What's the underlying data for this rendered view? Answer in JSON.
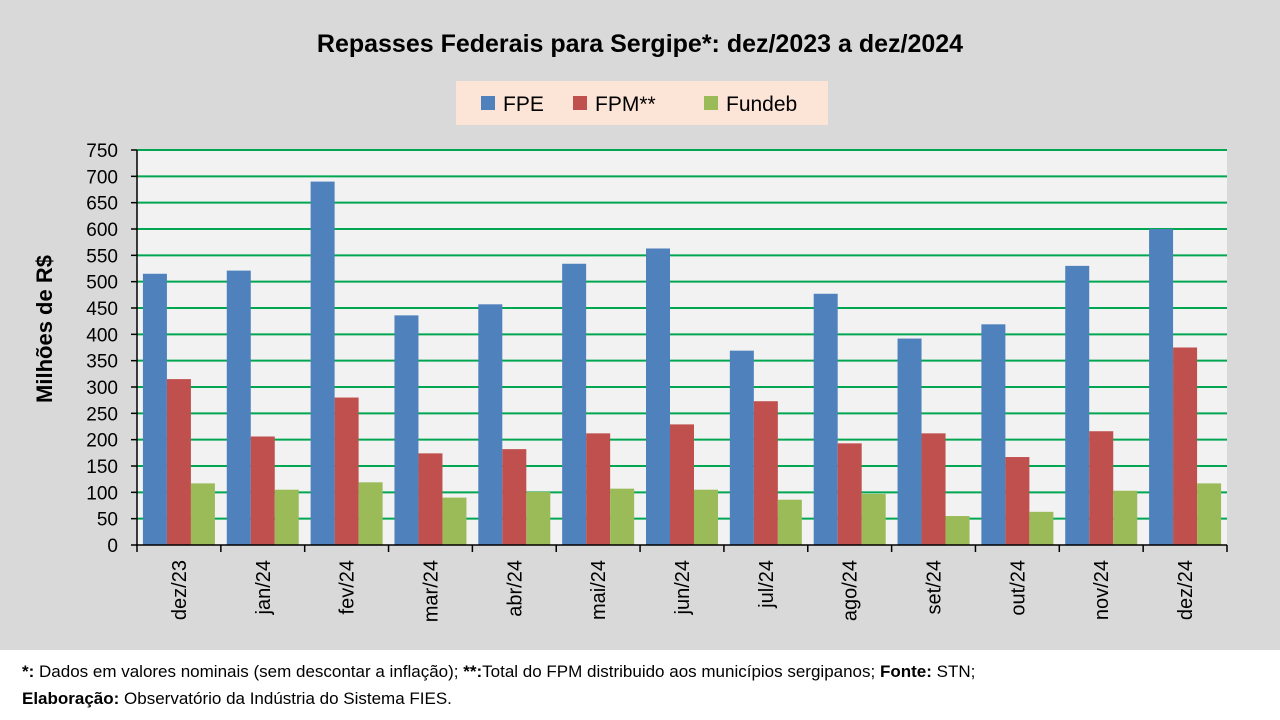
{
  "chart_data": {
    "type": "bar",
    "title": "Repasses Federais para Sergipe*: dez/2023 a dez/2024",
    "ylabel": "Milhões de R$",
    "xlabel": "",
    "ylim": [
      0,
      750
    ],
    "yticks": [
      0,
      50,
      100,
      150,
      200,
      250,
      300,
      350,
      400,
      450,
      500,
      550,
      600,
      650,
      700,
      750
    ],
    "grid": true,
    "legend_position": "top",
    "categories": [
      "dez/23",
      "jan/24",
      "fev/24",
      "mar/24",
      "abr/24",
      "mai/24",
      "jun/24",
      "jul/24",
      "ago/24",
      "set/24",
      "out/24",
      "nov/24",
      "dez/24"
    ],
    "series": [
      {
        "name": "FPE",
        "color": "#4f81bd",
        "values": [
          515,
          521,
          690,
          436,
          457,
          534,
          563,
          369,
          477,
          392,
          419,
          530,
          600
        ]
      },
      {
        "name": "FPM**",
        "color": "#c0504d",
        "values": [
          315,
          206,
          280,
          174,
          182,
          212,
          229,
          273,
          193,
          212,
          167,
          216,
          375
        ]
      },
      {
        "name": "Fundeb",
        "color": "#9bbb59",
        "values": [
          117,
          105,
          119,
          90,
          101,
          107,
          105,
          86,
          97,
          55,
          63,
          103,
          117
        ]
      }
    ]
  },
  "footnote": {
    "line1_mark1": "*:",
    "line1_text1": " Dados em valores nominais (sem descontar a inflação); ",
    "line1_mark2": "**:",
    "line1_text2": "Total  do FPM distribuido aos municípios sergipanos; ",
    "line1_mark3": "Fonte:",
    "line1_text3": " STN;",
    "line2_mark": "Elaboração:",
    "line2_text": " Observatório da Indústria do Sistema FIES."
  }
}
